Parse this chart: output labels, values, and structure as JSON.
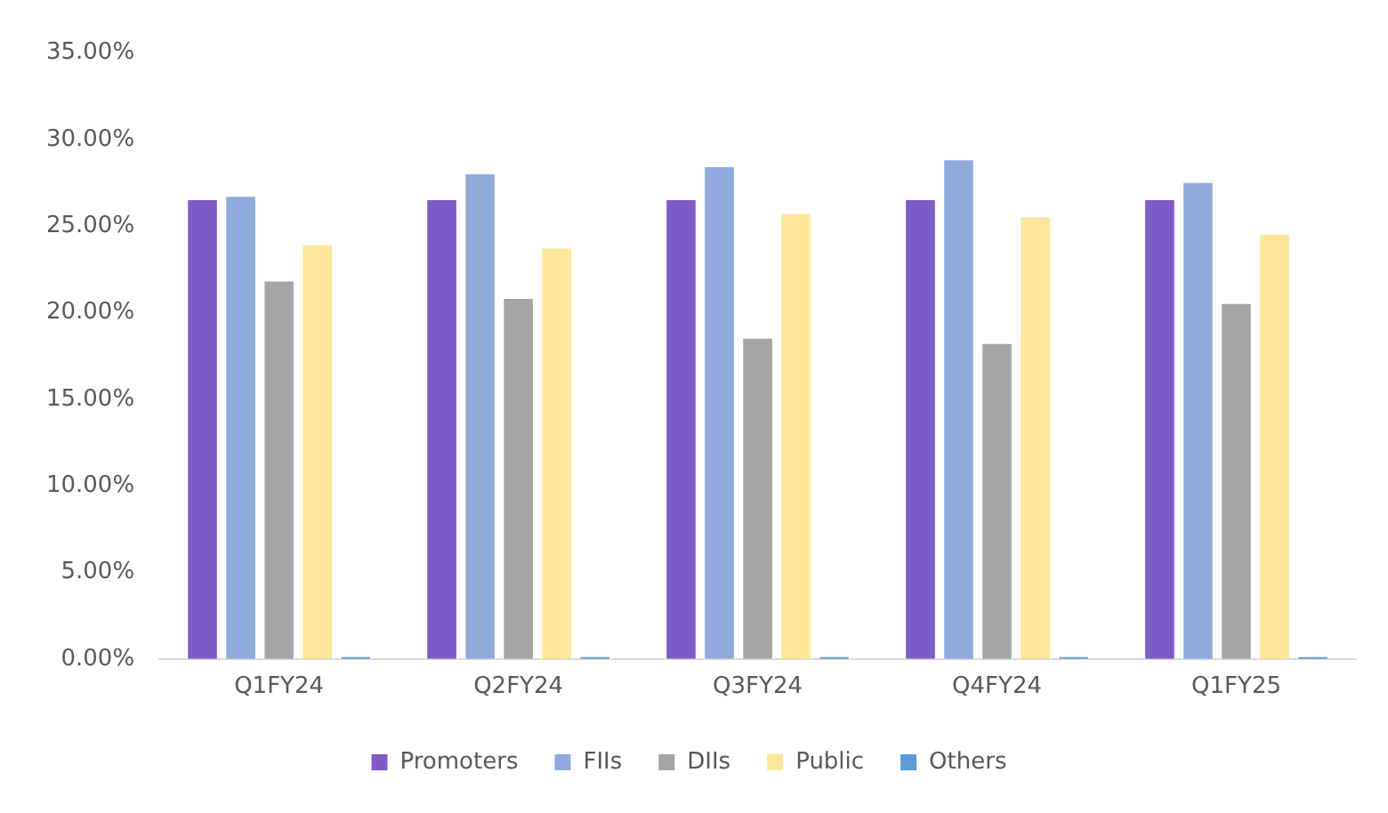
{
  "chart_data": {
    "type": "bar",
    "categories": [
      "Q1FY24",
      "Q2FY24",
      "Q3FY24",
      "Q4FY24",
      "Q1FY25"
    ],
    "series": [
      {
        "name": "Promoters",
        "color": "#7e5bc8",
        "values": [
          26.6,
          26.6,
          26.6,
          26.6,
          26.6
        ]
      },
      {
        "name": "FIIs",
        "color": "#8faadc",
        "values": [
          26.8,
          28.1,
          28.5,
          28.9,
          27.6
        ]
      },
      {
        "name": "DIIs",
        "color": "#a5a5a5",
        "values": [
          21.9,
          20.9,
          18.6,
          18.3,
          20.6
        ]
      },
      {
        "name": "Public",
        "color": "#ffe699",
        "values": [
          24.0,
          23.8,
          25.8,
          25.6,
          24.6
        ]
      },
      {
        "name": "Others",
        "color": "#5b9bd5",
        "values": [
          0.2,
          0.2,
          0.2,
          0.2,
          0.2
        ]
      }
    ],
    "ylim": [
      0,
      35
    ],
    "yticks": [
      {
        "value": 0,
        "label": "0.00%"
      },
      {
        "value": 5,
        "label": "5.00%"
      },
      {
        "value": 10,
        "label": "10.00%"
      },
      {
        "value": 15,
        "label": "15.00%"
      },
      {
        "value": 20,
        "label": "20.00%"
      },
      {
        "value": 25,
        "label": "25.00%"
      },
      {
        "value": 30,
        "label": "30.00%"
      },
      {
        "value": 35,
        "label": "35.00%"
      }
    ],
    "grid": false,
    "legend": "bottom"
  }
}
